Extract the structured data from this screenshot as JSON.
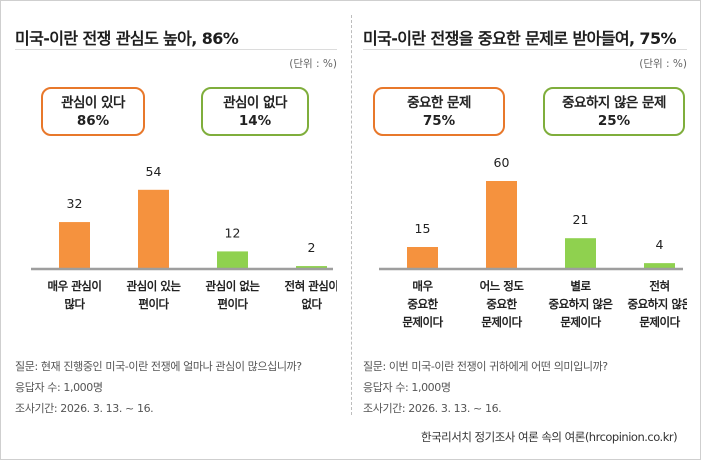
{
  "source": "한국리서치 정기조사 여론 속의 여론(hrcopinion.co.kr)",
  "colors": {
    "orange": "#f5923e",
    "green": "#8fd14f",
    "orange_border": "#e8782b",
    "green_border": "#7fae3c",
    "baseline": "#9e9e9e"
  },
  "panels": [
    {
      "title": "미국-이란 전쟁 관심도 높아, 86%",
      "unit": "(단위 : %)",
      "summary": [
        {
          "label": "관심이 있다",
          "value": "86%",
          "color": "orange"
        },
        {
          "label": "관심이 없다",
          "value": "14%",
          "color": "green"
        }
      ],
      "question": "질문: 현재 진행중인 미국-이란 전쟁에 얼마나 관심이 많으십니까?",
      "respondents": "응답자 수: 1,000명",
      "period": "조사기간: 2026. 3. 13. ~ 16."
    },
    {
      "title": "미국-이란 전쟁을 중요한 문제로 받아들여, 75%",
      "unit": "(단위 : %)",
      "summary": [
        {
          "label": "중요한 문제",
          "value": "75%",
          "color": "orange"
        },
        {
          "label": "중요하지 않은 문제",
          "value": "25%",
          "color": "green"
        }
      ],
      "question": "질문: 이번 미국-이란 전쟁이 귀하에게 어떤 의미입니까?",
      "respondents": "응답자 수: 1,000명",
      "period": "조사기간: 2026. 3. 13. ~ 16."
    }
  ],
  "chart_data": [
    {
      "type": "bar",
      "title": "미국-이란 전쟁 관심도 높아, 86%",
      "unit": "%",
      "categories": [
        [
          "매우 관심이",
          "많다"
        ],
        [
          "관심이 있는",
          "편이다"
        ],
        [
          "관심이 없는",
          "편이다"
        ],
        [
          "전혀 관심이",
          "없다"
        ]
      ],
      "values": [
        32,
        54,
        12,
        2
      ],
      "bar_colors": [
        "orange",
        "orange",
        "green",
        "green"
      ],
      "ylim": [
        0,
        60
      ],
      "grid": false,
      "legend": "none"
    },
    {
      "type": "bar",
      "title": "미국-이란 전쟁을 중요한 문제로 받아들여, 75%",
      "unit": "%",
      "categories": [
        [
          "매우",
          "중요한",
          "문제이다"
        ],
        [
          "어느 정도",
          "중요한",
          "문제이다"
        ],
        [
          "별로",
          "중요하지 않은",
          "문제이다"
        ],
        [
          "전혀",
          "중요하지 않은",
          "문제이다"
        ]
      ],
      "values": [
        15,
        60,
        21,
        4
      ],
      "bar_colors": [
        "orange",
        "orange",
        "green",
        "green"
      ],
      "ylim": [
        0,
        60
      ],
      "grid": false,
      "legend": "none"
    }
  ]
}
